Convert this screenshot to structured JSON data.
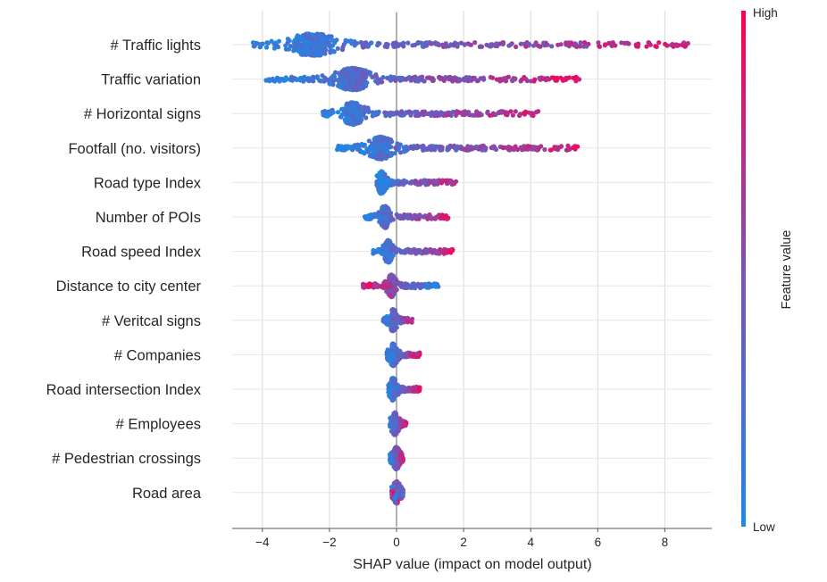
{
  "chart_data": {
    "type": "scatter",
    "subtype": "shap-beeswarm",
    "xlabel": "SHAP value (impact on model output)",
    "xlim": [
      -4.9,
      9.4
    ],
    "xticks": [
      -4,
      -2,
      0,
      2,
      4,
      6,
      8
    ],
    "xtick_labels": [
      "−4",
      "−2",
      "0",
      "2",
      "4",
      "6",
      "8"
    ],
    "grid": true,
    "colorbar": {
      "title": "Feature value",
      "high_label": "High",
      "low_label": "Low",
      "low_color": "#1e88e5",
      "mid_color": "#7c52b3",
      "high_color": "#ff0052"
    },
    "features": [
      {
        "name": "# Traffic lights",
        "min": -4.3,
        "max": 8.7,
        "mode": -2.5,
        "rise": "pos"
      },
      {
        "name": "Traffic variation",
        "min": -3.9,
        "max": 5.5,
        "mode": -1.3,
        "rise": "pos"
      },
      {
        "name": "# Horizontal signs",
        "min": -2.2,
        "max": 4.4,
        "mode": -1.3,
        "rise": "pos"
      },
      {
        "name": "Footfall (no. visitors)",
        "min": -1.8,
        "max": 5.4,
        "mode": -0.45,
        "rise": "pos"
      },
      {
        "name": "Road type Index",
        "min": -0.6,
        "max": 1.8,
        "mode": -0.45,
        "rise": "pos"
      },
      {
        "name": "Number of POIs",
        "min": -1.0,
        "max": 1.6,
        "mode": -0.35,
        "rise": "pos"
      },
      {
        "name": "Road speed Index",
        "min": -0.7,
        "max": 1.7,
        "mode": -0.25,
        "rise": "pos"
      },
      {
        "name": "Distance to city center",
        "min": -1.0,
        "max": 1.3,
        "mode": -0.15,
        "rise": "neg"
      },
      {
        "name": "# Veritcal signs",
        "min": -0.4,
        "max": 0.5,
        "mode": -0.1,
        "rise": "pos"
      },
      {
        "name": "# Companies",
        "min": -0.3,
        "max": 0.7,
        "mode": -0.1,
        "rise": "pos"
      },
      {
        "name": "Road intersection Index",
        "min": -0.25,
        "max": 0.7,
        "mode": -0.1,
        "rise": "pos"
      },
      {
        "name": "# Employees",
        "min": -0.2,
        "max": 0.3,
        "mode": -0.05,
        "rise": "pos"
      },
      {
        "name": "# Pedestrian crossings",
        "min": -0.2,
        "max": 0.2,
        "mode": 0.0,
        "rise": "pos"
      },
      {
        "name": "Road area",
        "min": -0.15,
        "max": 0.2,
        "mode": 0.0,
        "rise": "mix"
      }
    ]
  }
}
